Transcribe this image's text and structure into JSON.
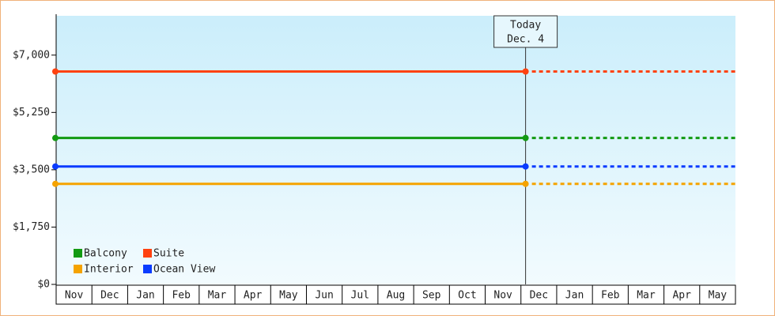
{
  "chart_data": {
    "type": "line",
    "categories": [
      "Nov",
      "Dec",
      "Jan",
      "Feb",
      "Mar",
      "Apr",
      "May",
      "Jun",
      "Jul",
      "Aug",
      "Sep",
      "Oct",
      "Nov",
      "Dec",
      "Jan",
      "Feb",
      "Mar",
      "Apr",
      "May"
    ],
    "series": [
      {
        "name": "Balcony",
        "color": "#129a12",
        "value": 4470
      },
      {
        "name": "Suite",
        "color": "#ff4210",
        "value": 6500
      },
      {
        "name": "Interior",
        "color": "#f5a300",
        "value": 3070
      },
      {
        "name": "Ocean View",
        "color": "#0a3cff",
        "value": 3600
      }
    ],
    "annotation": {
      "title": "Today",
      "date": "Dec. 4"
    },
    "ylim": [
      0,
      8200
    ],
    "yticks": [
      {
        "value": 0,
        "label": "$0"
      },
      {
        "value": 1750,
        "label": "$1,750"
      },
      {
        "value": 3500,
        "label": "$3,500"
      },
      {
        "value": 5250,
        "label": "$5,250"
      },
      {
        "value": 7000,
        "label": "$7,000"
      }
    ]
  }
}
